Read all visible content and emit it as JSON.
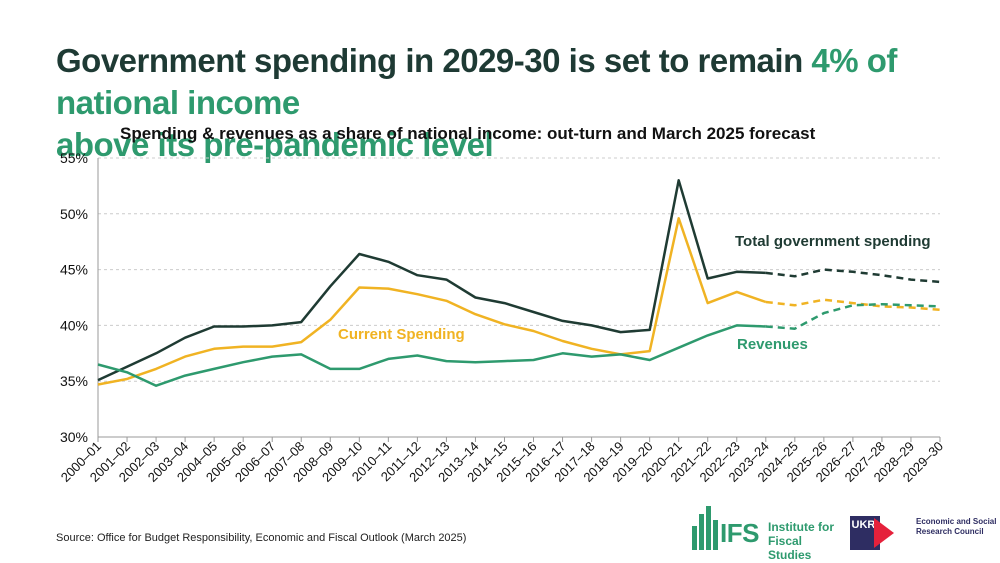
{
  "headline": {
    "part1": "Government spending in 2029-30 is set to remain ",
    "highlight": "4% of national income",
    "part2": "above its pre-pandemic level"
  },
  "source": "Source: Office for Budget Responsibility, Economic and Fiscal Outlook (March 2025)",
  "logos": {
    "ifs_mark": "IFS",
    "ifs_name": "Institute for Fiscal Studies",
    "ukri_mark": "UKRI",
    "ukri_name": "Economic and Social Research Council"
  },
  "colors": {
    "title_dark": "#1e3a34",
    "accent_green": "#2e9a6e",
    "total": "#1f3b33",
    "current": "#f0b323",
    "revenues": "#2e9a6e",
    "grid": "#cccccc"
  },
  "chart_data": {
    "type": "line",
    "title": "Spending & revenues as a share of national income: out-turn and March 2025 forecast",
    "xlabel": "",
    "ylabel": "",
    "ylim": [
      30,
      55
    ],
    "yticks": [
      30,
      35,
      40,
      45,
      50,
      55
    ],
    "ytick_labels": [
      "30%",
      "35%",
      "40%",
      "45%",
      "50%",
      "55%"
    ],
    "grid": true,
    "forecast_start_index": 23,
    "categories": [
      "2000–01",
      "2001–02",
      "2002–03",
      "2003–04",
      "2004–05",
      "2005–06",
      "2006–07",
      "2007–08",
      "2008–09",
      "2009–10",
      "2010–11",
      "2011–12",
      "2012–13",
      "2013–14",
      "2014–15",
      "2015–16",
      "2016–17",
      "2017–18",
      "2018–19",
      "2019–20",
      "2020–21",
      "2021–22",
      "2022–23",
      "2023–24",
      "2024–25",
      "2025–26",
      "2026–27",
      "2027–28",
      "2028–29",
      "2029–30"
    ],
    "series": [
      {
        "name": "Total government spending",
        "key": "total",
        "values": [
          35.1,
          36.3,
          37.5,
          38.9,
          39.9,
          39.9,
          40.0,
          40.3,
          43.5,
          46.4,
          45.7,
          44.5,
          44.1,
          42.5,
          42.0,
          41.2,
          40.4,
          40.0,
          39.4,
          39.6,
          53.0,
          44.2,
          44.8,
          44.7,
          44.4,
          45.0,
          44.8,
          44.5,
          44.1,
          43.9
        ]
      },
      {
        "name": "Current Spending",
        "key": "current",
        "values": [
          34.7,
          35.2,
          36.1,
          37.2,
          37.9,
          38.1,
          38.1,
          38.5,
          40.5,
          43.4,
          43.3,
          42.8,
          42.2,
          41.0,
          40.1,
          39.5,
          38.6,
          37.9,
          37.4,
          37.7,
          49.6,
          42.0,
          43.0,
          42.1,
          41.8,
          42.3,
          42.0,
          41.7,
          41.6,
          41.4
        ]
      },
      {
        "name": "Revenues",
        "key": "revenues",
        "values": [
          36.5,
          35.8,
          34.6,
          35.5,
          36.1,
          36.7,
          37.2,
          37.4,
          36.1,
          36.1,
          37.0,
          37.3,
          36.8,
          36.7,
          36.8,
          36.9,
          37.5,
          37.2,
          37.4,
          36.9,
          38.0,
          39.1,
          40.0,
          39.9,
          39.7,
          41.1,
          41.8,
          41.9,
          41.8,
          41.7
        ]
      }
    ]
  }
}
